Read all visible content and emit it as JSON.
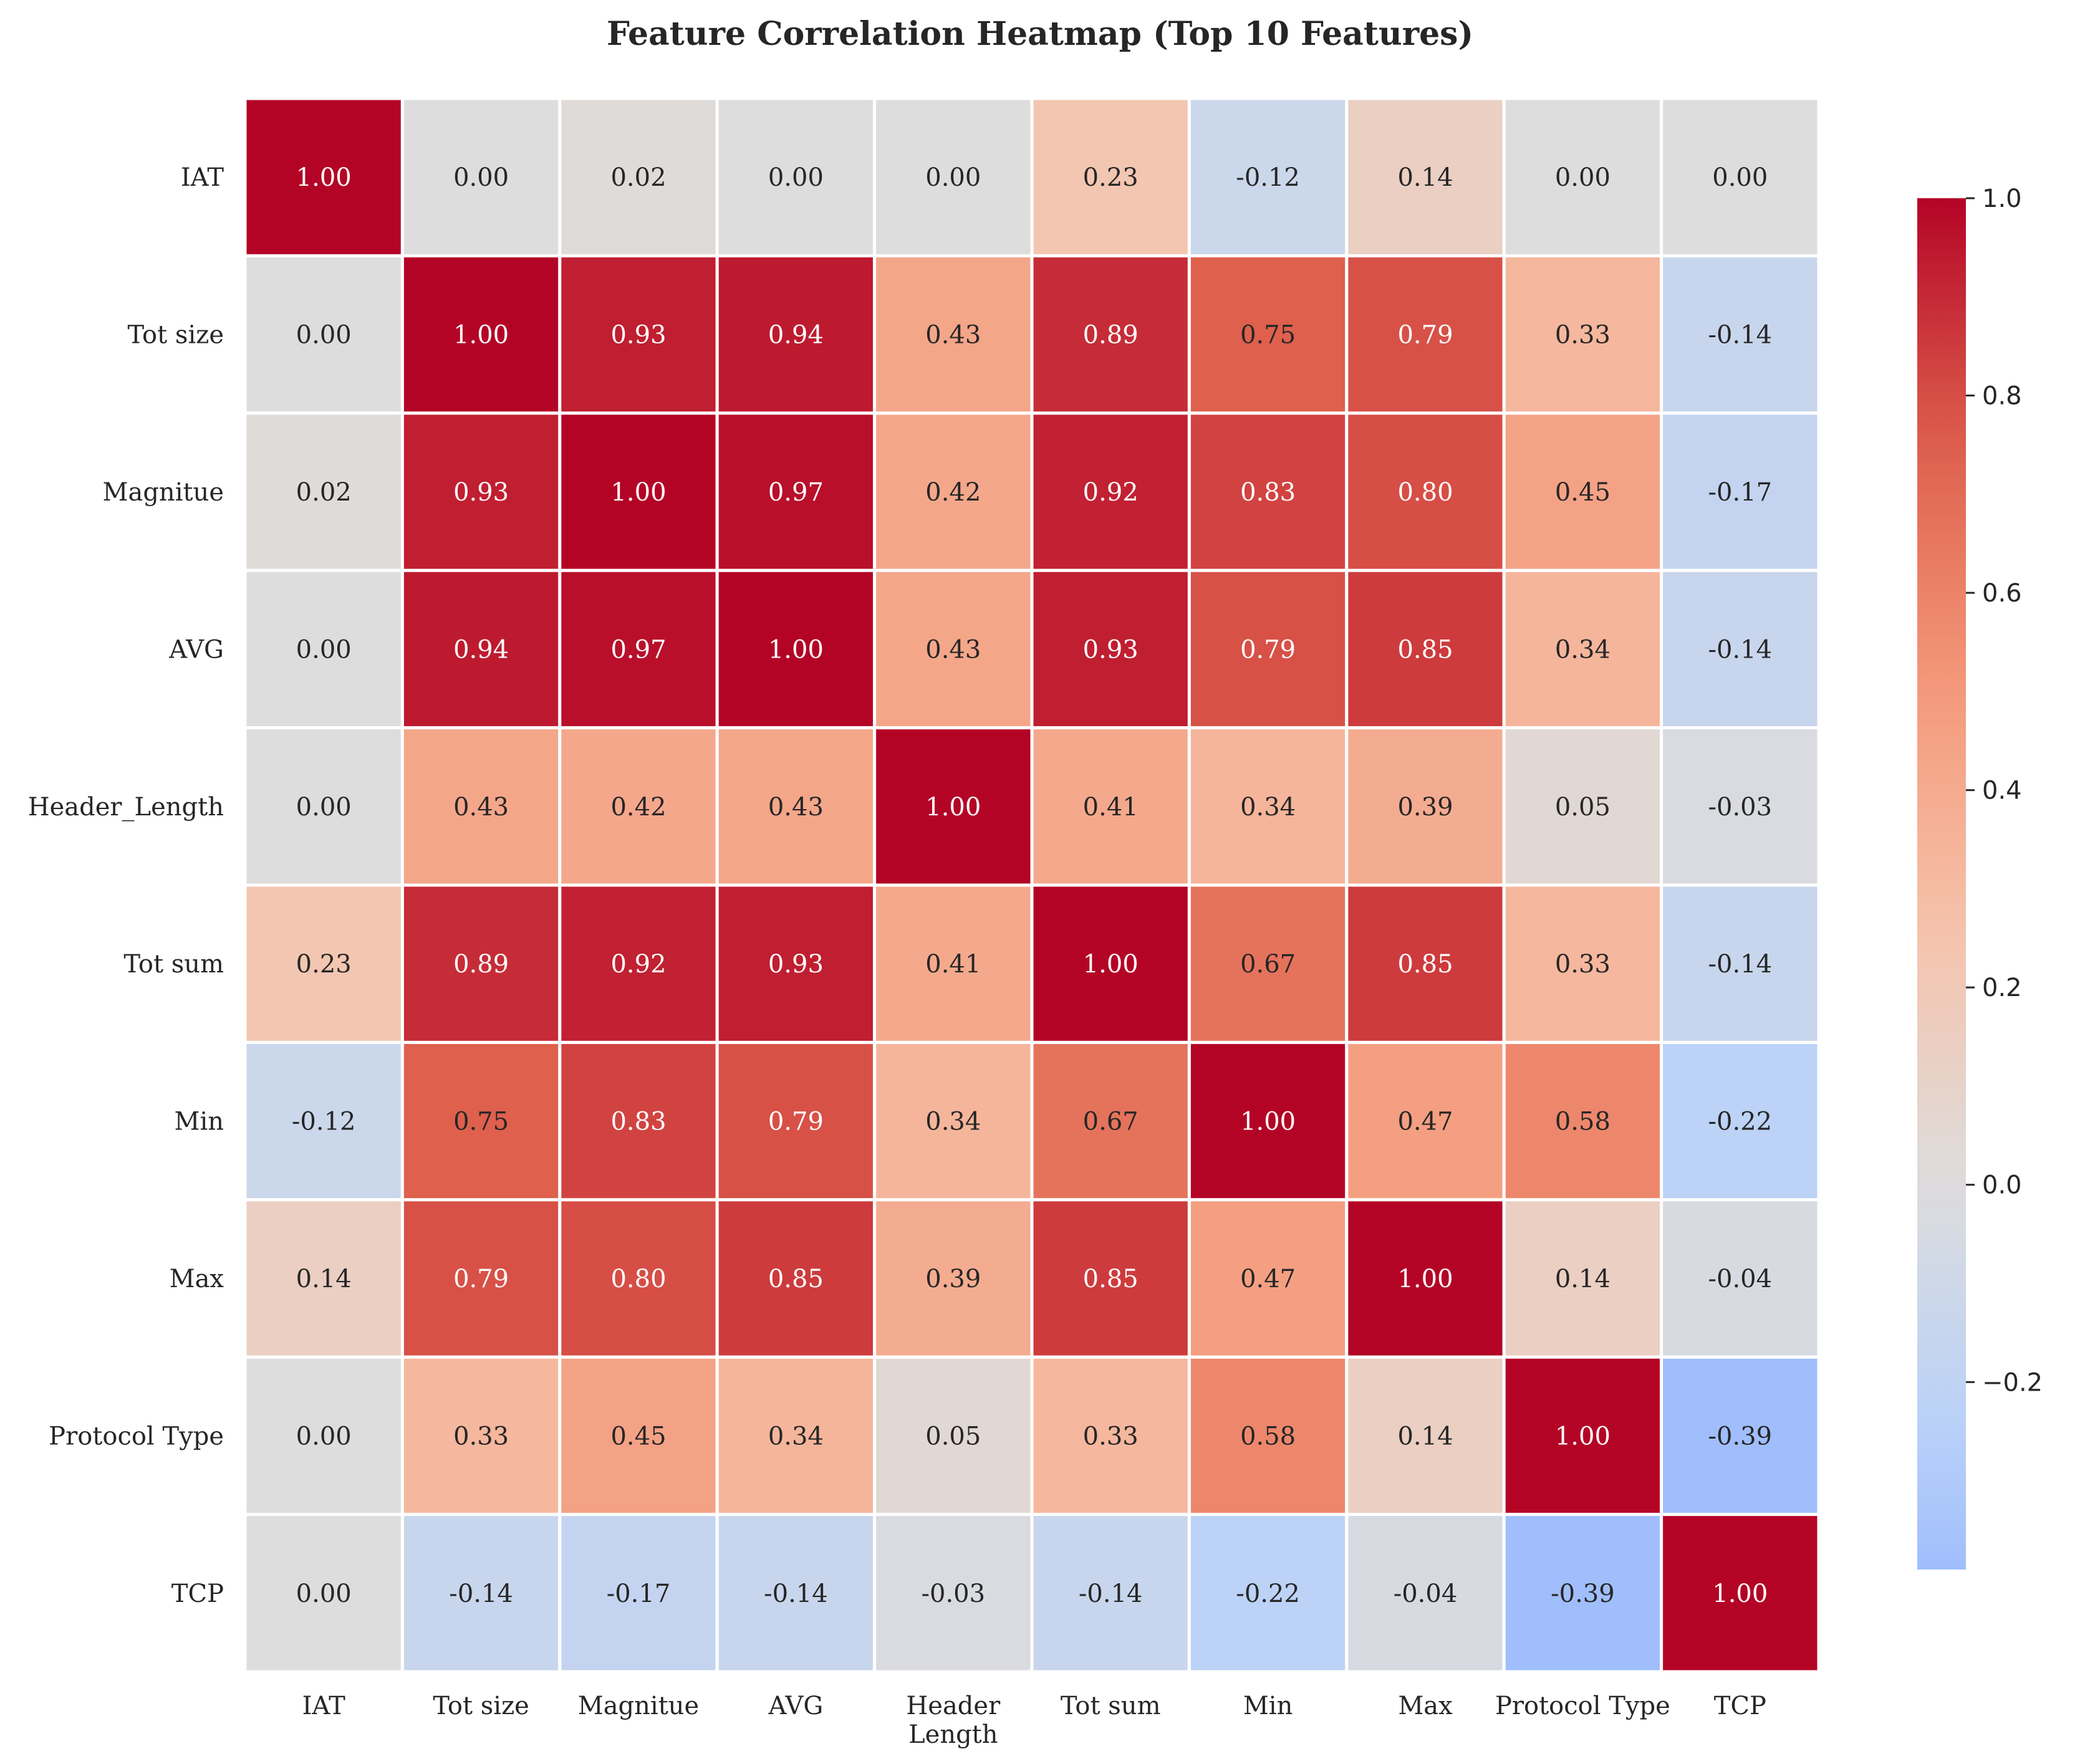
{
  "chart_data": {
    "type": "heatmap",
    "title": "Feature Correlation Heatmap (Top 10 Features)",
    "row_labels": [
      "IAT",
      "Tot size",
      "Magnitue",
      "AVG",
      "Header_Length",
      "Tot sum",
      "Min",
      "Max",
      "Protocol Type",
      "TCP"
    ],
    "column_labels": [
      "IAT",
      "Tot size",
      "Magnitue",
      "AVG",
      "Header\nLength",
      "Tot sum",
      "Min",
      "Max",
      "Protocol Type",
      "TCP"
    ],
    "values": [
      [
        1.0,
        0.0,
        0.02,
        0.0,
        0.0,
        0.23,
        -0.12,
        0.14,
        0.0,
        0.0
      ],
      [
        0.0,
        1.0,
        0.93,
        0.94,
        0.43,
        0.89,
        0.75,
        0.79,
        0.33,
        -0.14
      ],
      [
        0.02,
        0.93,
        1.0,
        0.97,
        0.42,
        0.92,
        0.83,
        0.8,
        0.45,
        -0.17
      ],
      [
        0.0,
        0.94,
        0.97,
        1.0,
        0.43,
        0.93,
        0.79,
        0.85,
        0.34,
        -0.14
      ],
      [
        0.0,
        0.43,
        0.42,
        0.43,
        1.0,
        0.41,
        0.34,
        0.39,
        0.05,
        -0.03
      ],
      [
        0.23,
        0.89,
        0.92,
        0.93,
        0.41,
        1.0,
        0.67,
        0.85,
        0.33,
        -0.14
      ],
      [
        -0.12,
        0.75,
        0.83,
        0.79,
        0.34,
        0.67,
        1.0,
        0.47,
        0.58,
        -0.22
      ],
      [
        0.14,
        0.79,
        0.8,
        0.85,
        0.39,
        0.85,
        0.47,
        1.0,
        0.14,
        -0.04
      ],
      [
        0.0,
        0.33,
        0.45,
        0.34,
        0.05,
        0.33,
        0.58,
        0.14,
        1.0,
        -0.39
      ],
      [
        0.0,
        -0.14,
        -0.17,
        -0.14,
        -0.03,
        -0.14,
        -0.22,
        -0.04,
        -0.39,
        1.0
      ]
    ],
    "value_format": "2 decimals",
    "colormap": "coolwarm",
    "color_range": [
      -0.39,
      1.0
    ],
    "center": 0,
    "colorbar": {
      "ticks": [
        1.0,
        0.8,
        0.6,
        0.4,
        0.2,
        0.0,
        -0.2
      ],
      "tick_labels": [
        "1.0",
        "0.8",
        "0.6",
        "0.4",
        "0.2",
        "0.0",
        "−0.2"
      ],
      "placement": "right"
    },
    "cell_border_color": "#ffffff"
  }
}
